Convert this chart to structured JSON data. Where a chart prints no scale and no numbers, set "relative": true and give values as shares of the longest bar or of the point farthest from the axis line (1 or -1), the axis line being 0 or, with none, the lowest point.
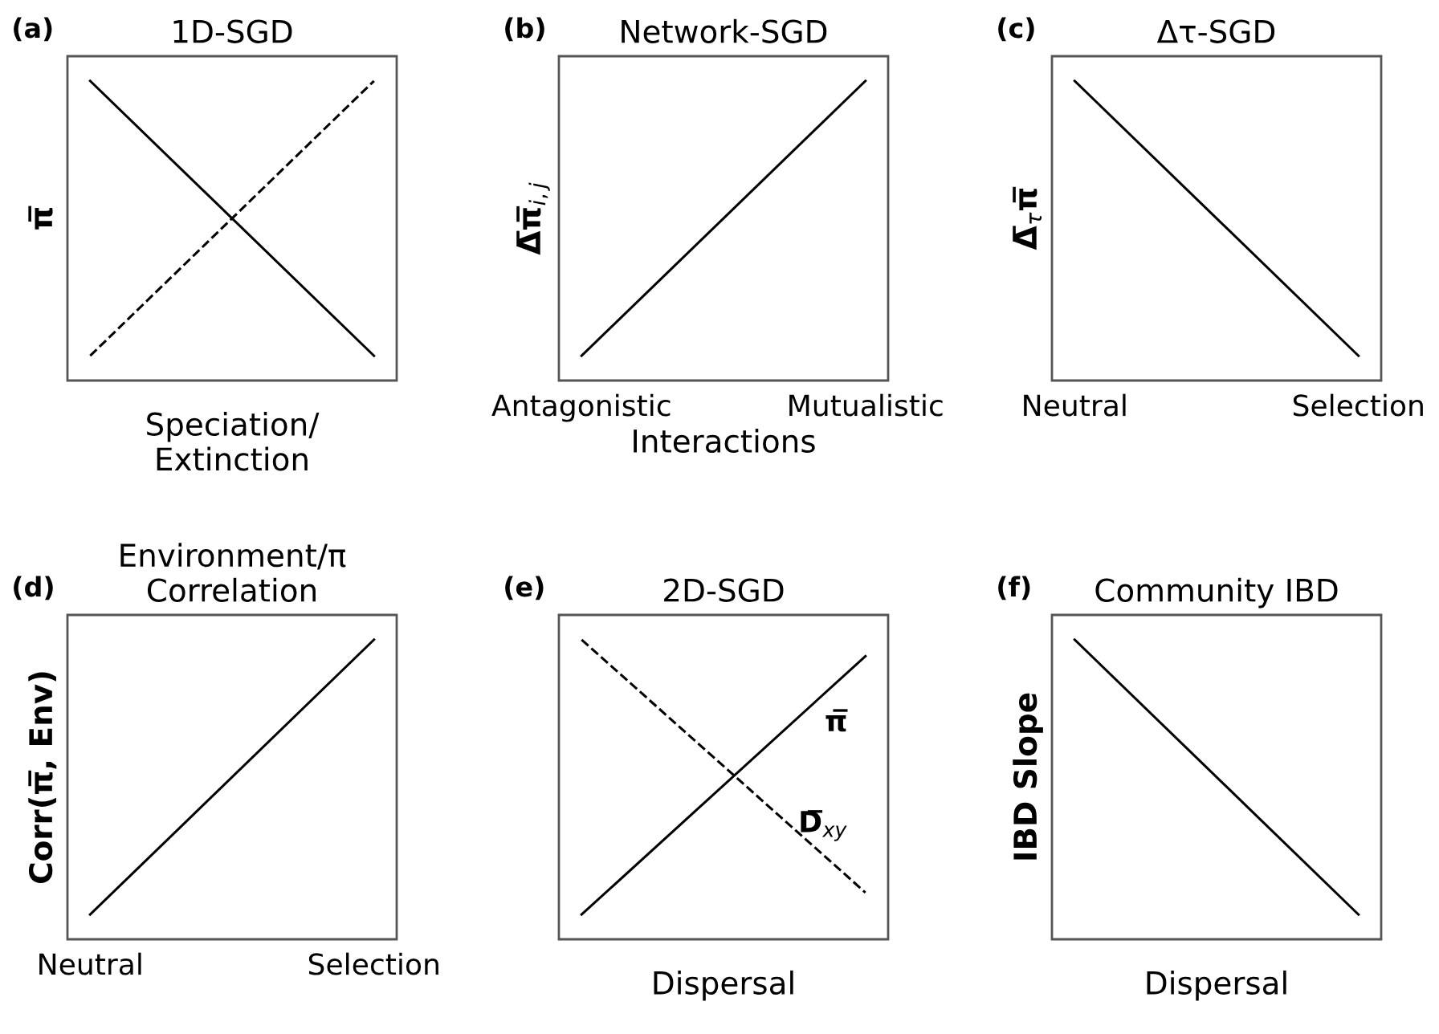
{
  "chart_data": [
    {
      "type": "line",
      "relative": true,
      "title": "1D-SGD",
      "xlabel": "Speciation/\nExtinction",
      "ylabel": "π̅",
      "categories": [
        null,
        null
      ],
      "annotations": [
        "(a)"
      ],
      "series": [
        {
          "color": "#000000",
          "line_style": "solid",
          "values": [
            1,
            0
          ]
        },
        {
          "color": "#000000",
          "line_style": "dashed",
          "values": [
            0,
            1
          ]
        }
      ]
    },
    {
      "type": "line",
      "relative": true,
      "title": "Network-SGD",
      "xlabel": "Interactions",
      "ylabel": "Δ̅π̅$_{i,j}$",
      "categories": [
        "Antagonistic",
        "Mutualistic"
      ],
      "tick_labels": "x",
      "annotations": [
        "(b)"
      ],
      "series": [
        {
          "color": "#000000",
          "line_style": "solid",
          "values": [
            0,
            1
          ]
        }
      ]
    },
    {
      "type": "line",
      "relative": true,
      "title": "Δτ-SGD",
      "ylabel": "Δ̅$_{τ}$π̅",
      "categories": [
        "Neutral",
        "Selection"
      ],
      "tick_labels": "x",
      "annotations": [
        "(c)"
      ],
      "series": [
        {
          "color": "#000000",
          "line_style": "solid",
          "values": [
            1,
            0
          ]
        }
      ]
    },
    {
      "type": "line",
      "relative": true,
      "title": "Environment/π\nCorrelation",
      "ylabel": "Corr(π̅, Env)",
      "categories": [
        "Neutral",
        "Selection"
      ],
      "tick_labels": "x",
      "annotations": [
        "(d)"
      ],
      "series": [
        {
          "color": "#000000",
          "line_style": "solid",
          "values": [
            0,
            1
          ]
        }
      ]
    },
    {
      "type": "line",
      "relative": true,
      "title": "2D-SGD",
      "xlabel": "Dispersal",
      "categories": [
        null,
        null
      ],
      "annotations": [
        "(e)"
      ],
      "series": [
        {
          "name": "π̅",
          "color": "#000000",
          "line_style": "solid",
          "values": [
            0,
            0.94
          ]
        },
        {
          "name": "D̅$_{xy}$",
          "color": "#000000",
          "line_style": "dashed",
          "values": [
            1,
            0.08
          ]
        }
      ]
    },
    {
      "type": "line",
      "relative": true,
      "title": "Community IBD",
      "xlabel": "Dispersal",
      "ylabel": "IBD Slope",
      "categories": [
        null,
        null
      ],
      "annotations": [
        "(f)"
      ],
      "series": [
        {
          "color": "#000000",
          "line_style": "solid",
          "values": [
            1,
            0
          ]
        }
      ]
    }
  ]
}
